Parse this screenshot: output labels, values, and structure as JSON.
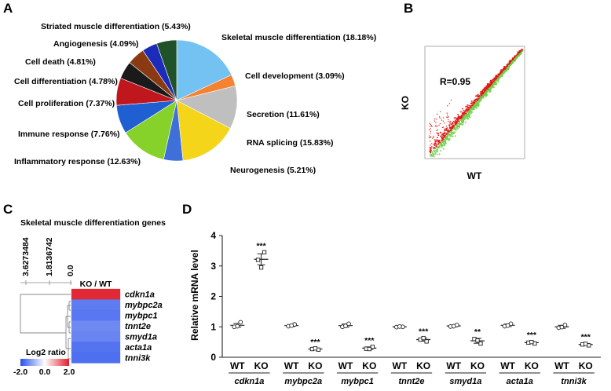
{
  "panels": {
    "a": "A",
    "b": "B",
    "c": "C",
    "d": "D"
  },
  "chart_data": [
    {
      "type": "pie",
      "colors": {
        "Skeletal muscle differentiation": "#74c2f2",
        "Cell development": "#f58231",
        "Secretion": "#bfbfbf",
        "RNA splicing": "#f5d519",
        "Neurogenesis": "#3f6fd8",
        "Inflammatory response": "#86d12a",
        "Immune response": "#1f5fd1",
        "Cell proliferation": "#c0171f",
        "Cell differentiation": "#1a1a1a",
        "Cell death": "#8a3a12",
        "Angiogenesis": "#1c2bb8",
        "Striated muscle differentiation": "#1f5229"
      },
      "slices": [
        {
          "label": "Skeletal muscle differentiation (18.18%)",
          "name": "Skeletal muscle differentiation",
          "value": 18.18
        },
        {
          "label": "Cell development (3.09%)",
          "name": "Cell development",
          "value": 3.09
        },
        {
          "label": "Secretion (11.61%)",
          "name": "Secretion",
          "value": 11.61
        },
        {
          "label": "RNA splicing (15.83%)",
          "name": "RNA splicing",
          "value": 15.83
        },
        {
          "label": "Neurogenesis (5.21%)",
          "name": "Neurogenesis",
          "value": 5.21
        },
        {
          "label": "Inflammatory response (12.63%)",
          "name": "Inflammatory response",
          "value": 12.63
        },
        {
          "label": "Immune response (7.76%)",
          "name": "Immune response",
          "value": 7.76
        },
        {
          "label": "Cell proliferation (7.37%)",
          "name": "Cell proliferation",
          "value": 7.37
        },
        {
          "label": "Cell differentiation (4.78%)",
          "name": "Cell differentiation",
          "value": 4.78
        },
        {
          "label": "Cell death (4.81%)",
          "name": "Cell death",
          "value": 4.81
        },
        {
          "label": "Angiogenesis (4.09%)",
          "name": "Angiogenesis",
          "value": 4.09
        },
        {
          "label": "Striated muscle differentiation (5.43%)",
          "name": "Striated muscle differentiation",
          "value": 5.43
        }
      ]
    },
    {
      "type": "scatter",
      "annotation": "R=0.95",
      "xlabel": "WT",
      "ylabel": "KO",
      "colors": {
        "upper": "#e01818",
        "lower": "#6fd14a"
      }
    },
    {
      "type": "heatmap",
      "title": "Skeletal muscle differentiation genes",
      "column_label": "KO / WT",
      "tree_scale_labels": [
        "3.6273484",
        "1.8136742",
        "0.0"
      ],
      "rows": [
        "cdkn1a",
        "mybpc2a",
        "mybpc1",
        "tnnt2e",
        "smyd1a",
        "acta1a",
        "tnni3k"
      ],
      "log2_ratio": [
        1.9,
        -1.5,
        -1.55,
        -1.35,
        -1.4,
        -1.6,
        -1.65
      ],
      "legend": {
        "title": "Log2 ratio",
        "ticks": [
          "-2.0",
          "0.0",
          "2.0"
        ],
        "range": [
          -2.0,
          2.0
        ]
      }
    },
    {
      "type": "scatter",
      "ylabel": "Relative mRNA level",
      "ylim": [
        0,
        4
      ],
      "yticks": [
        "0",
        "1",
        "2",
        "3",
        "4"
      ],
      "genes": [
        "cdkn1a",
        "mybpc2a",
        "mybpc1",
        "tnnt2e",
        "smyd1a",
        "acta1a",
        "tnni3k"
      ],
      "groups": [
        "WT",
        "KO"
      ],
      "series": [
        {
          "gene": "cdkn1a",
          "WT": {
            "mean": 1.05,
            "sem": 0.06,
            "points": [
              1.0,
              1.15,
              1.02
            ]
          },
          "KO": {
            "mean": 3.22,
            "sem": 0.18,
            "points": [
              3.2,
              3.45,
              2.95
            ],
            "sig": "***"
          }
        },
        {
          "gene": "mybpc2a",
          "WT": {
            "mean": 1.04,
            "sem": 0.03,
            "points": [
              1.02,
              1.08,
              1.04
            ]
          },
          "KO": {
            "mean": 0.27,
            "sem": 0.02,
            "points": [
              0.27,
              0.25,
              0.29
            ],
            "sig": "***"
          }
        },
        {
          "gene": "mybpc1",
          "WT": {
            "mean": 1.04,
            "sem": 0.05,
            "points": [
              1.0,
              1.1,
              1.03
            ]
          },
          "KO": {
            "mean": 0.3,
            "sem": 0.04,
            "points": [
              0.28,
              0.34,
              0.27
            ],
            "sig": "***"
          }
        },
        {
          "gene": "tnnt2e",
          "WT": {
            "mean": 1.0,
            "sem": 0.02,
            "points": [
              0.99,
              1.0,
              1.01
            ]
          },
          "KO": {
            "mean": 0.58,
            "sem": 0.05,
            "points": [
              0.58,
              0.52,
              0.63
            ],
            "sig": "***"
          }
        },
        {
          "gene": "smyd1a",
          "WT": {
            "mean": 1.03,
            "sem": 0.03,
            "points": [
              1.01,
              1.06,
              1.02
            ]
          },
          "KO": {
            "mean": 0.54,
            "sem": 0.08,
            "points": [
              0.6,
              0.45,
              0.55
            ],
            "sig": "**"
          }
        },
        {
          "gene": "acta1a",
          "WT": {
            "mean": 1.05,
            "sem": 0.04,
            "points": [
              1.02,
              1.1,
              1.04
            ]
          },
          "KO": {
            "mean": 0.48,
            "sem": 0.03,
            "points": [
              0.48,
              0.45,
              0.5
            ],
            "sig": "***"
          }
        },
        {
          "gene": "tnni3k",
          "WT": {
            "mean": 1.0,
            "sem": 0.05,
            "points": [
              0.97,
              1.06,
              0.99
            ]
          },
          "KO": {
            "mean": 0.42,
            "sem": 0.03,
            "points": [
              0.42,
              0.39,
              0.44
            ],
            "sig": "***"
          }
        }
      ]
    }
  ]
}
